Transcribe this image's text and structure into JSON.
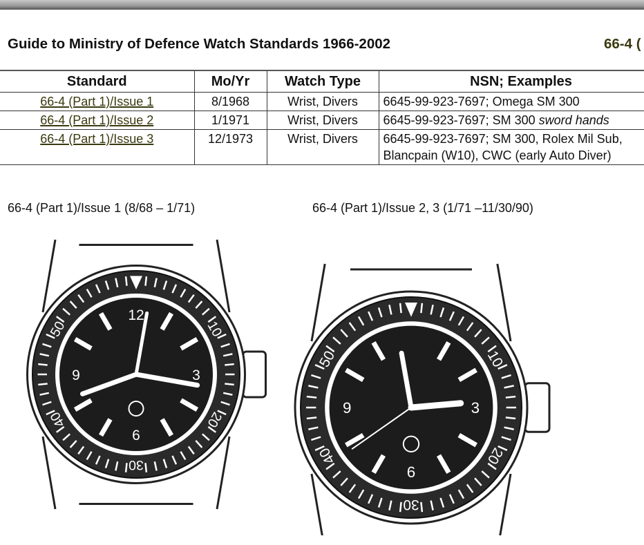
{
  "header": {
    "title": "Guide to Ministry of Defence Watch Standards 1966-2002",
    "code": "66-4 ("
  },
  "table": {
    "columns": [
      "Standard",
      "Mo/Yr",
      "Watch Type",
      "NSN; Examples"
    ],
    "rows": [
      {
        "standard": "66-4 (Part 1)/Issue 1",
        "date": "8/1968",
        "type": "Wrist, Divers",
        "nsn": "6645-99-923-7697; Omega SM 300",
        "nsn_italic": "",
        "nsn2": ""
      },
      {
        "standard": "66-4 (Part 1)/Issue 2",
        "date": "1/1971",
        "type": "Wrist, Divers",
        "nsn": "6645-99-923-7697; SM 300 ",
        "nsn_italic": "sword hands",
        "nsn2": ""
      },
      {
        "standard": "66-4 (Part 1)/Issue 3",
        "date": "12/1973",
        "type": "Wrist, Divers",
        "nsn": "6645-99-923-7697; SM 300, Rolex Mil Sub,",
        "nsn_italic": "",
        "nsn2": "Blancpain (W10), CWC (early Auto Diver)"
      }
    ]
  },
  "figures": [
    {
      "caption": "66-4 (Part 1)/Issue 1 (8/68 – 1/71)",
      "bezel": [
        "50",
        "40",
        "30",
        "20",
        "10"
      ],
      "dial": [
        "12",
        "3",
        "6",
        "9"
      ]
    },
    {
      "caption": "66-4 (Part 1)/Issue 2, 3 (1/71 –11/30/90)",
      "bezel": [
        "50",
        "40",
        "30",
        "20",
        "10"
      ],
      "dial": [
        "3",
        "6",
        "9"
      ]
    }
  ]
}
